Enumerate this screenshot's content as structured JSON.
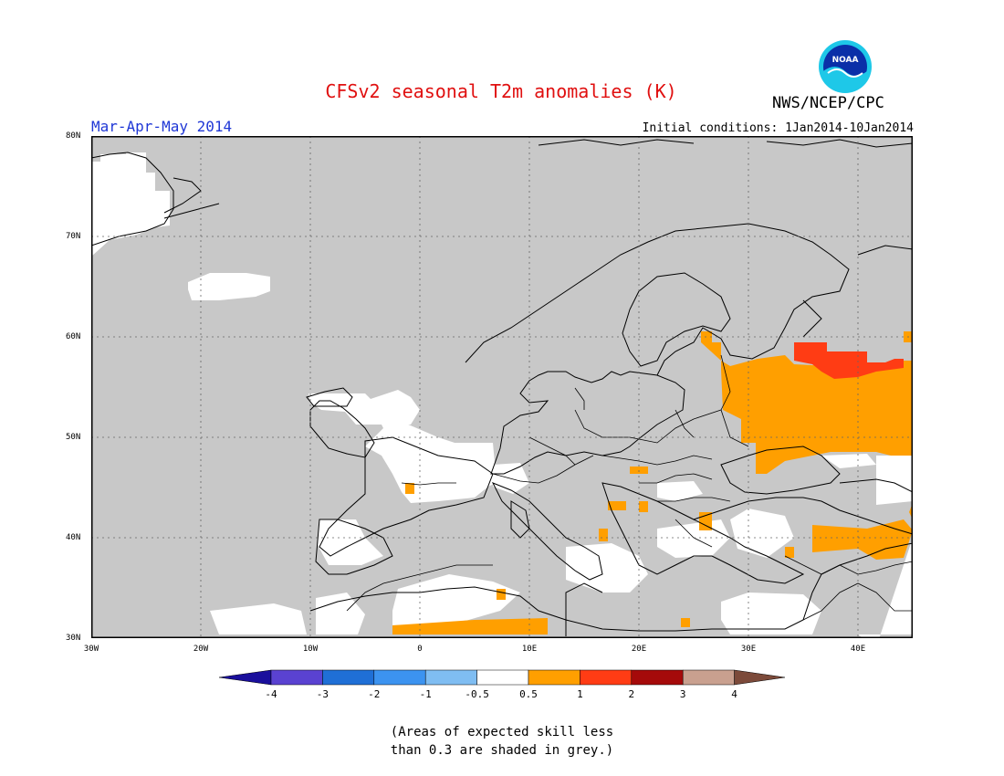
{
  "title": "CFSv2 seasonal T2m anomalies (K)",
  "organization": "NWS/NCEP/CPC",
  "logo_text": "NOAA",
  "period": "Mar-Apr-May 2014",
  "initial_conditions": "Initial conditions: 1Jan2014-10Jan2014",
  "lat_labels": [
    "80N",
    "70N",
    "60N",
    "50N",
    "40N",
    "30N"
  ],
  "lon_labels": [
    "30W",
    "20W",
    "10W",
    "0",
    "10E",
    "20E",
    "30E",
    "40E"
  ],
  "colorbar": {
    "labels": [
      "-4",
      "-3",
      "-2",
      "-1",
      "-0.5",
      "0.5",
      "1",
      "2",
      "3",
      "4"
    ],
    "colors": [
      "#1a0f9c",
      "#5a42d1",
      "#1f6fd6",
      "#3c93f0",
      "#7fbdf2",
      "#ffffff",
      "#ff9f00",
      "#ff3c14",
      "#a50a0a",
      "#c9a08f",
      "#7c4a3a"
    ]
  },
  "note_line1": "(Areas of expected skill less",
  "note_line2": "than 0.3 are shaded in grey.)",
  "colors": {
    "grey_mask": "#c8c8c8",
    "neutral": "#ffffff",
    "warm1": "#ff9f00",
    "warm2": "#ff3c14"
  }
}
